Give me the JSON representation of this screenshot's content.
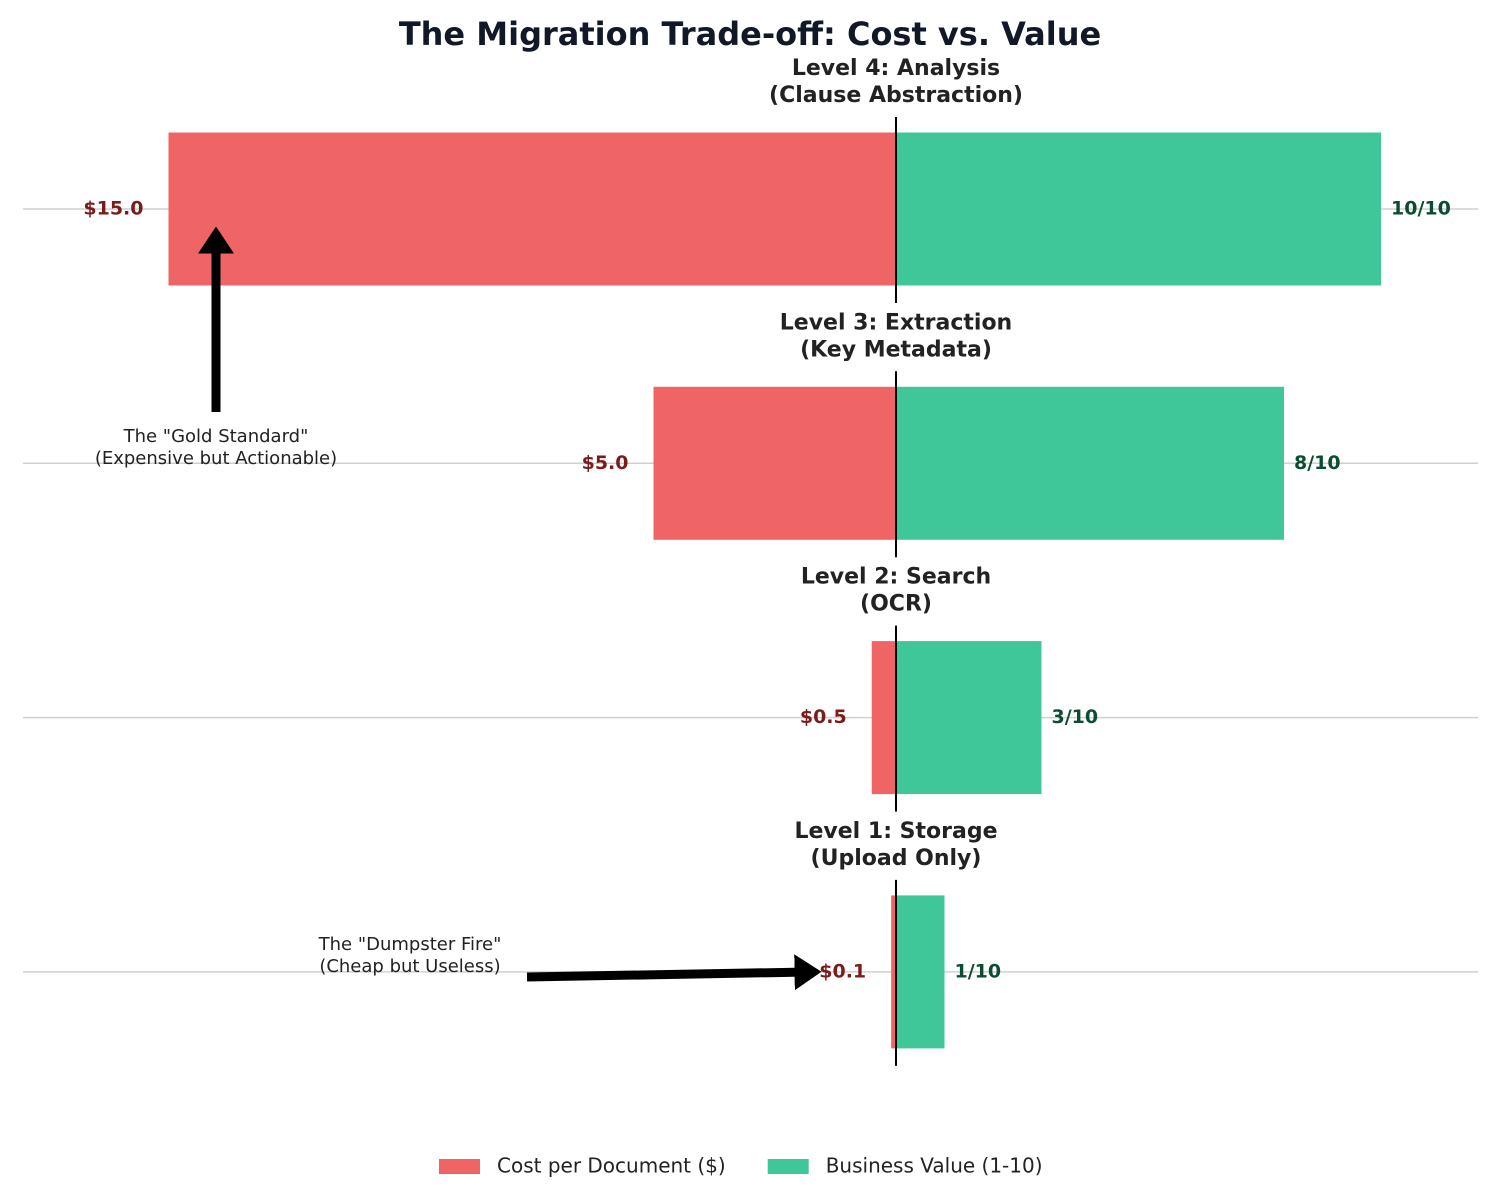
{
  "chart_data": {
    "type": "diverging-bar",
    "title": "The Migration Trade-off: Cost vs. Value",
    "categories": [
      [
        "Level 4: Analysis",
        "(Clause Abstraction)"
      ],
      [
        "Level 3: Extraction",
        "(Key Metadata)"
      ],
      [
        "Level 2: Search",
        "(OCR)"
      ],
      [
        "Level 1: Storage",
        "(Upload Only)"
      ]
    ],
    "series": [
      {
        "name": "Cost per Document ($)",
        "color": "#ef6565",
        "label_color": "#7b1c1c",
        "side": "left",
        "values": [
          15,
          5,
          0.5,
          0.1
        ],
        "value_labels": [
          "$15.0",
          "$5.0",
          "$0.5",
          "$0.1"
        ]
      },
      {
        "name": "Business Value (1-10)",
        "color": "#3fc79a",
        "label_color": "#0b4d31",
        "side": "right",
        "values": [
          10,
          8,
          3,
          1
        ],
        "value_labels": [
          "10/10",
          "8/10",
          "3/10",
          "1/10"
        ]
      }
    ],
    "xlim": [
      -18,
      12
    ],
    "grid": true,
    "legend": "bottom",
    "annotations": [
      {
        "lines": [
          "The \"Gold Standard\"",
          "(Expensive but Actionable)"
        ]
      },
      {
        "lines": [
          "The \"Dumpster Fire\"",
          "(Cheap but Useless)"
        ]
      }
    ]
  }
}
